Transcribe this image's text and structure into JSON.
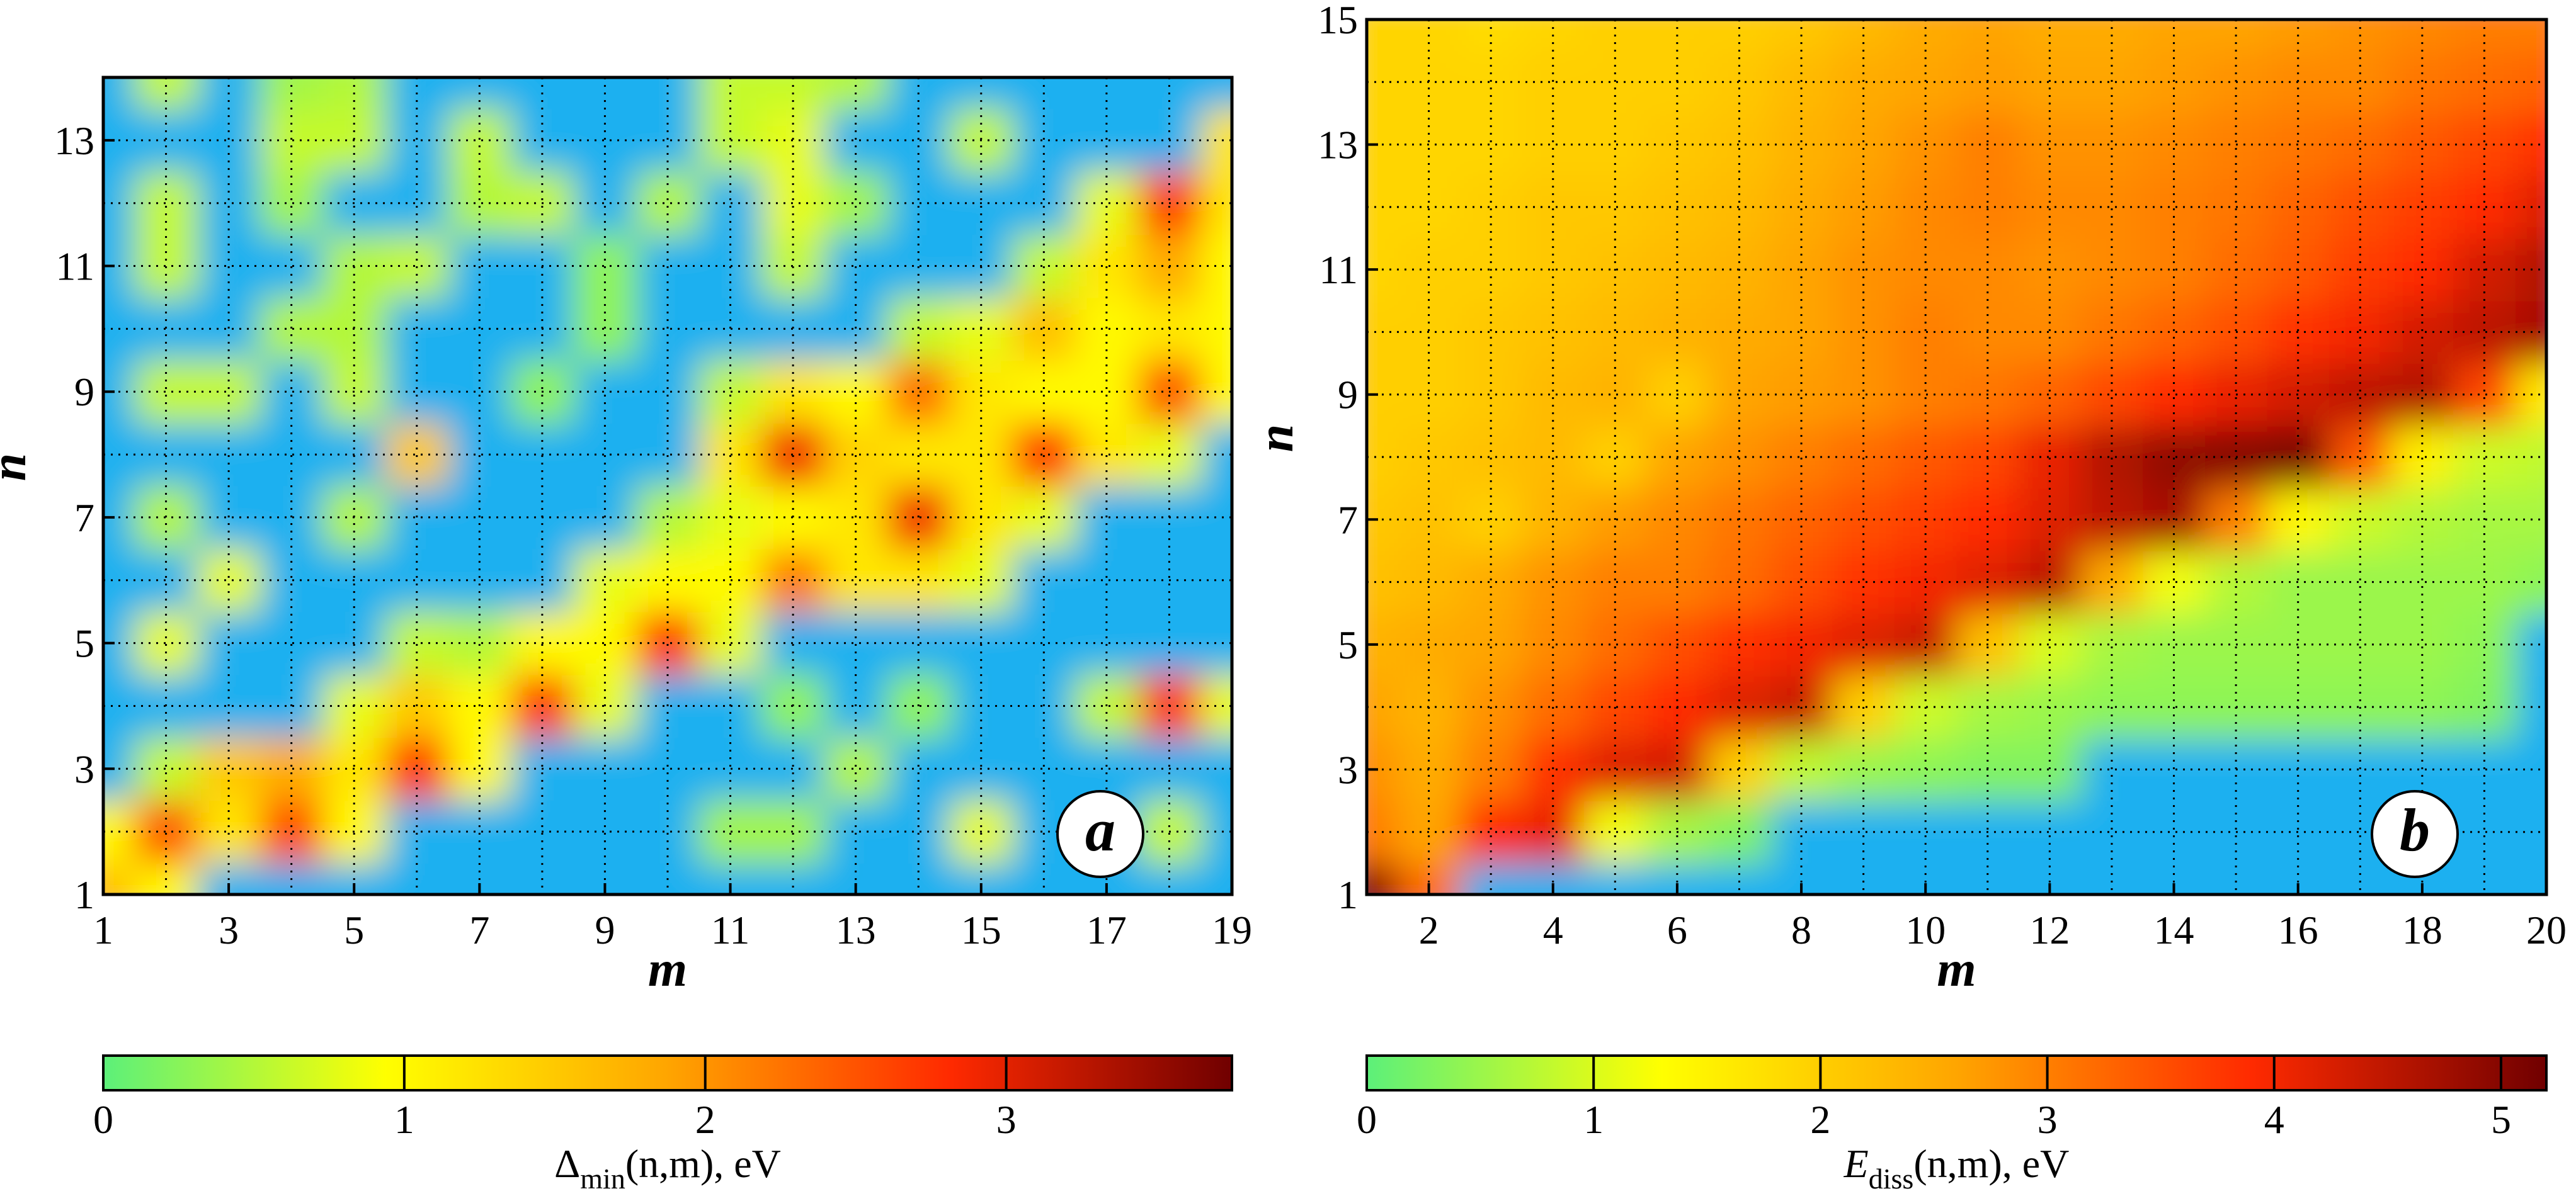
{
  "chart_data": [
    {
      "type": "heatmap",
      "xlabel": "m",
      "ylabel": "n",
      "panel_label": "a",
      "x": [
        1,
        2,
        3,
        4,
        5,
        6,
        7,
        8,
        9,
        10,
        11,
        12,
        13,
        14,
        15,
        16,
        17,
        18,
        19
      ],
      "y": [
        1,
        2,
        3,
        4,
        5,
        6,
        7,
        8,
        9,
        10,
        11,
        12,
        13,
        14
      ],
      "xlim": [
        1,
        19
      ],
      "ylim": [
        1,
        14
      ],
      "xticks": [
        1,
        3,
        5,
        7,
        9,
        11,
        13,
        15,
        17,
        19
      ],
      "yticks": [
        1,
        3,
        5,
        7,
        9,
        11,
        13
      ],
      "grid": true,
      "nan_color": "#1ab0f0",
      "colormap": [
        "#5cf07a",
        "#ffff00",
        "#ffa500",
        "#ff2a00",
        "#700000"
      ],
      "colorbar": {
        "lim": [
          0,
          3.75
        ],
        "ticks": [
          0,
          1,
          2,
          3
        ],
        "label": {
          "symbol": "Δ",
          "subscript": "min",
          "args": "(n,m), eV"
        }
      },
      "z": [
        [
          1.6,
          1.0,
          null,
          null,
          null,
          null,
          null,
          null,
          null,
          null,
          null,
          null,
          null,
          null,
          null,
          null,
          null,
          null,
          null
        ],
        [
          1.0,
          2.5,
          1.2,
          2.6,
          1.0,
          null,
          null,
          null,
          null,
          null,
          0.4,
          0.4,
          null,
          null,
          0.8,
          null,
          null,
          0.6,
          null
        ],
        [
          null,
          0.6,
          1.5,
          1.8,
          1.2,
          2.8,
          1.0,
          null,
          null,
          null,
          null,
          null,
          0.5,
          null,
          null,
          null,
          null,
          null,
          null
        ],
        [
          null,
          null,
          null,
          null,
          0.8,
          1.5,
          1.0,
          2.8,
          0.8,
          null,
          null,
          0.3,
          null,
          0.3,
          null,
          null,
          0.6,
          2.8,
          0.8
        ],
        [
          null,
          0.8,
          null,
          null,
          null,
          0.6,
          0.5,
          1.0,
          1.0,
          2.8,
          0.8,
          null,
          null,
          null,
          null,
          null,
          null,
          null,
          null
        ],
        [
          null,
          null,
          0.8,
          null,
          null,
          null,
          null,
          null,
          0.8,
          1.0,
          1.0,
          2.2,
          1.2,
          1.2,
          0.8,
          null,
          null,
          null,
          null
        ],
        [
          null,
          0.5,
          null,
          null,
          0.5,
          null,
          null,
          null,
          null,
          0.5,
          0.8,
          1.0,
          1.2,
          2.9,
          1.2,
          0.8,
          null,
          null,
          null
        ],
        [
          null,
          null,
          null,
          null,
          null,
          1.5,
          null,
          null,
          null,
          null,
          1.2,
          2.9,
          1.4,
          1.2,
          1.2,
          2.8,
          1.2,
          0.8,
          null
        ],
        [
          null,
          0.6,
          0.6,
          null,
          0.6,
          null,
          null,
          0.3,
          null,
          null,
          0.6,
          1.2,
          1.0,
          2.3,
          1.2,
          1.0,
          1.0,
          2.5,
          1.0
        ],
        [
          null,
          null,
          null,
          0.5,
          0.5,
          null,
          null,
          null,
          0.3,
          null,
          null,
          null,
          null,
          0.6,
          0.8,
          1.6,
          1.0,
          1.2,
          1.0
        ],
        [
          null,
          0.6,
          null,
          null,
          0.5,
          0.6,
          null,
          null,
          0.3,
          null,
          null,
          0.6,
          null,
          null,
          null,
          0.6,
          1.2,
          1.8,
          1.0
        ],
        [
          null,
          0.6,
          null,
          0.4,
          null,
          null,
          0.5,
          0.6,
          null,
          0.5,
          null,
          0.8,
          0.4,
          null,
          null,
          null,
          0.8,
          2.7,
          1.2
        ],
        [
          null,
          null,
          null,
          0.6,
          0.6,
          null,
          0.6,
          null,
          null,
          null,
          0.6,
          0.8,
          null,
          null,
          0.6,
          null,
          null,
          null,
          1.2
        ],
        [
          null,
          0.6,
          null,
          0.4,
          0.5,
          null,
          null,
          null,
          null,
          null,
          0.6,
          0.6,
          0.5,
          null,
          null,
          null,
          null,
          null,
          null
        ]
      ]
    },
    {
      "type": "heatmap",
      "xlabel": "m",
      "ylabel": "n",
      "panel_label": "b",
      "x": [
        1,
        2,
        3,
        4,
        5,
        6,
        7,
        8,
        9,
        10,
        11,
        12,
        13,
        14,
        15,
        16,
        17,
        18,
        19,
        20
      ],
      "y": [
        1,
        2,
        3,
        4,
        5,
        6,
        7,
        8,
        9,
        10,
        11,
        12,
        13,
        14,
        15
      ],
      "xlim": [
        1,
        20
      ],
      "ylim": [
        1,
        15
      ],
      "xticks": [
        2,
        4,
        6,
        8,
        10,
        12,
        14,
        16,
        18,
        20
      ],
      "yticks": [
        1,
        3,
        5,
        7,
        9,
        11,
        13,
        15
      ],
      "grid": true,
      "nan_color": "#1ab0f0",
      "colormap": [
        "#5cf07a",
        "#ffff00",
        "#ffa500",
        "#ff2a00",
        "#700000"
      ],
      "colorbar": {
        "lim": [
          0,
          5.2
        ],
        "ticks": [
          0,
          1,
          2,
          3,
          4,
          5
        ],
        "label": {
          "symbol": "E",
          "subscript": "diss",
          "args": "(n,m), eV"
        }
      },
      "z": [
        [
          5.0,
          3.2,
          null,
          null,
          null,
          null,
          null,
          null,
          null,
          null,
          null,
          null,
          null,
          null,
          null,
          null,
          null,
          null,
          null,
          null
        ],
        [
          3.0,
          2.6,
          3.9,
          4.1,
          1.2,
          0.6,
          0.3,
          null,
          null,
          null,
          null,
          null,
          null,
          null,
          null,
          null,
          null,
          null,
          null,
          null
        ],
        [
          2.8,
          2.5,
          3.0,
          3.8,
          4.2,
          4.3,
          2.0,
          0.8,
          0.5,
          0.4,
          0.3,
          0.3,
          null,
          null,
          null,
          null,
          null,
          null,
          null,
          null
        ],
        [
          2.6,
          2.4,
          2.8,
          3.2,
          3.6,
          3.9,
          4.2,
          4.4,
          2.0,
          0.9,
          0.6,
          0.5,
          0.4,
          0.4,
          0.4,
          0.4,
          0.4,
          0.4,
          0.3,
          null
        ],
        [
          2.4,
          2.5,
          2.6,
          2.9,
          3.2,
          3.5,
          3.8,
          4.0,
          4.2,
          4.4,
          2.2,
          1.0,
          0.6,
          0.5,
          0.5,
          0.5,
          0.5,
          0.5,
          0.4,
          null
        ],
        [
          2.2,
          2.3,
          2.5,
          2.8,
          3.0,
          3.0,
          3.2,
          3.5,
          3.8,
          4.0,
          4.2,
          4.5,
          2.5,
          1.2,
          0.7,
          0.5,
          0.5,
          0.5,
          0.5,
          0.4
        ],
        [
          2.1,
          2.2,
          2.0,
          2.4,
          2.7,
          2.9,
          3.1,
          3.3,
          3.5,
          3.7,
          3.9,
          4.2,
          4.5,
          4.7,
          3.0,
          1.4,
          0.9,
          0.7,
          0.6,
          0.6
        ],
        [
          2.0,
          2.1,
          2.2,
          2.3,
          2.0,
          2.6,
          2.8,
          3.0,
          3.2,
          3.4,
          3.6,
          4.1,
          4.6,
          4.9,
          5.0,
          5.1,
          3.4,
          1.5,
          0.9,
          0.8
        ],
        [
          2.0,
          2.0,
          2.1,
          2.3,
          2.4,
          2.0,
          2.6,
          2.7,
          2.8,
          3.0,
          3.1,
          3.3,
          3.6,
          3.9,
          4.1,
          4.3,
          4.5,
          4.6,
          3.6,
          1.6
        ],
        [
          2.0,
          2.0,
          2.1,
          2.2,
          2.3,
          2.4,
          2.5,
          2.6,
          2.8,
          3.0,
          2.9,
          2.9,
          3.1,
          3.3,
          3.5,
          3.8,
          4.0,
          4.3,
          4.5,
          4.7
        ],
        [
          1.9,
          2.0,
          2.0,
          2.1,
          2.2,
          2.3,
          2.4,
          2.6,
          2.8,
          2.9,
          2.9,
          2.8,
          2.9,
          3.0,
          3.2,
          3.4,
          3.7,
          3.9,
          4.3,
          4.6
        ],
        [
          1.9,
          1.9,
          2.0,
          2.1,
          2.1,
          2.2,
          2.3,
          2.5,
          2.7,
          2.9,
          3.0,
          2.9,
          2.9,
          3.0,
          3.1,
          3.3,
          3.5,
          3.7,
          3.9,
          4.2
        ],
        [
          1.9,
          1.9,
          1.9,
          2.0,
          2.0,
          2.1,
          2.2,
          2.4,
          2.6,
          2.8,
          3.0,
          2.8,
          2.8,
          2.9,
          3.0,
          3.1,
          3.2,
          3.4,
          3.6,
          3.8
        ],
        [
          1.9,
          1.9,
          1.9,
          2.0,
          2.0,
          2.0,
          2.1,
          2.3,
          2.5,
          2.6,
          2.7,
          2.6,
          2.6,
          2.7,
          2.8,
          2.9,
          2.9,
          3.1,
          3.2,
          3.3
        ],
        [
          1.9,
          1.9,
          1.8,
          1.9,
          2.0,
          2.0,
          2.0,
          2.1,
          2.3,
          2.5,
          2.6,
          2.5,
          2.5,
          2.6,
          2.6,
          2.7,
          2.8,
          2.9,
          3.0,
          3.0
        ]
      ]
    }
  ]
}
